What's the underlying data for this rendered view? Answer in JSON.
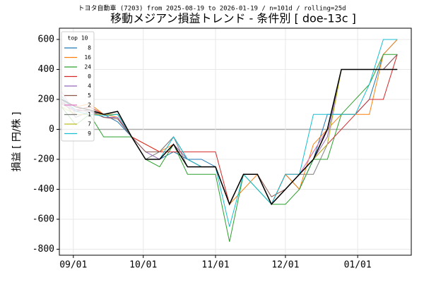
{
  "chart_data": {
    "type": "line",
    "title": "移動メジアン損益トレンド - 条件別 [ doe-13c ]",
    "subtitle": "トヨタ自動車 (7203) from 2025-08-19 to 2026-01-19 / n=101d / rolling=25d",
    "y_label": "損益 [ 円/株 ]",
    "legend_title": "top 10",
    "legend_position": "upper left",
    "grid": true,
    "x": [
      "08/27",
      "09/02",
      "09/08",
      "09/14",
      "09/20",
      "09/26",
      "10/02",
      "10/08",
      "10/14",
      "10/20",
      "10/26",
      "11/01",
      "11/07",
      "11/13",
      "11/19",
      "11/25",
      "12/01",
      "12/07",
      "12/13",
      "12/19",
      "12/25",
      "12/31",
      "01/06",
      "01/12",
      "01/18"
    ],
    "xlim": [
      "08/26",
      "01/24"
    ],
    "xticks": [
      "09/01",
      "10/01",
      "11/01",
      "12/01",
      "01/01"
    ],
    "ylim": [
      -840,
      675
    ],
    "yticks": [
      -800,
      -600,
      -400,
      -200,
      0,
      200,
      400,
      600
    ],
    "series": [
      {
        "name": "8",
        "color": "#1f77b4",
        "values": [
          200,
          130,
          120,
          100,
          50,
          -50,
          -200,
          -200,
          -150,
          -200,
          -200,
          -250,
          -500,
          -300,
          -300,
          -500,
          -300,
          -400,
          -200,
          100,
          100,
          100,
          200,
          500,
          600
        ]
      },
      {
        "name": "16",
        "color": "#ff7f0e",
        "values": [
          200,
          150,
          170,
          100,
          80,
          -50,
          -100,
          -150,
          -100,
          -200,
          -250,
          -250,
          -500,
          -400,
          -300,
          -500,
          -300,
          -400,
          -100,
          0,
          100,
          100,
          100,
          500,
          600
        ]
      },
      {
        "name": "24",
        "color": "#2ca02c",
        "values": [
          150,
          30,
          100,
          -50,
          -50,
          -50,
          -200,
          -250,
          -100,
          -300,
          -300,
          -300,
          -750,
          -300,
          -400,
          -500,
          -500,
          -400,
          -200,
          -200,
          100,
          200,
          300,
          500,
          500
        ]
      },
      {
        "name": "0",
        "color": "#d62728",
        "values": [
          180,
          130,
          150,
          100,
          100,
          -50,
          -100,
          -150,
          -150,
          -150,
          -150,
          -150,
          -500,
          -300,
          -300,
          -500,
          -300,
          -300,
          -200,
          -100,
          0,
          100,
          200,
          200,
          500
        ]
      },
      {
        "name": "4",
        "color": "#9467bd",
        "values": [
          180,
          130,
          120,
          80,
          80,
          -50,
          -150,
          -200,
          -100,
          -200,
          -250,
          -250,
          -500,
          -300,
          -300,
          -500,
          -400,
          -300,
          -200,
          -50,
          400,
          400,
          400,
          400,
          500
        ]
      },
      {
        "name": "5",
        "color": "#8c564b",
        "values": [
          170,
          120,
          130,
          80,
          70,
          -50,
          -150,
          -150,
          -50,
          -200,
          -250,
          -250,
          -500,
          -300,
          -300,
          -450,
          -400,
          -300,
          -150,
          0,
          400,
          400,
          400,
          400,
          500
        ]
      },
      {
        "name": "2",
        "color": "#e377c2",
        "values": [
          250,
          100,
          100,
          100,
          100,
          -50,
          -200,
          -200,
          -100,
          -250,
          -250,
          -250,
          -500,
          -300,
          -300,
          -500,
          -400,
          -300,
          -150,
          0,
          400,
          400,
          400,
          400,
          400
        ]
      },
      {
        "name": "1",
        "color": "#7f7f7f",
        "values": [
          200,
          80,
          120,
          100,
          100,
          -50,
          -200,
          -150,
          -50,
          -250,
          -250,
          -250,
          -500,
          -300,
          -300,
          -500,
          -400,
          -300,
          -300,
          -100,
          400,
          400,
          400,
          400,
          400
        ]
      },
      {
        "name": "7",
        "color": "#bcbd22",
        "values": [
          150,
          100,
          100,
          100,
          100,
          -50,
          -200,
          -200,
          -100,
          -250,
          -250,
          -250,
          -500,
          -300,
          -300,
          -500,
          -400,
          -300,
          -200,
          -100,
          400,
          400,
          400,
          400,
          400
        ]
      },
      {
        "name": "9",
        "color": "#17becf",
        "values": [
          220,
          120,
          100,
          90,
          100,
          -50,
          -200,
          -200,
          -50,
          -200,
          -250,
          -250,
          -650,
          -300,
          -400,
          -500,
          -300,
          -300,
          100,
          100,
          100,
          100,
          300,
          600,
          600
        ]
      },
      {
        "color": "#000000",
        "values": [
          200,
          150,
          130,
          100,
          120,
          -50,
          -200,
          -200,
          -100,
          -250,
          -250,
          -250,
          -500,
          -300,
          -300,
          -500,
          -400,
          -300,
          -200,
          0,
          400,
          400,
          400,
          400,
          400
        ]
      }
    ]
  }
}
